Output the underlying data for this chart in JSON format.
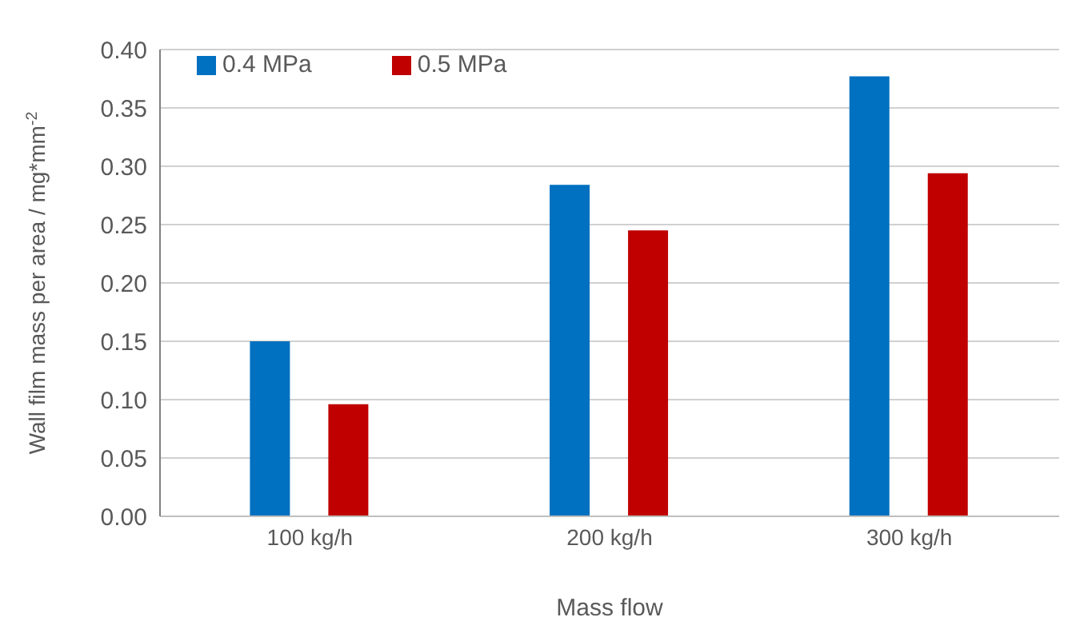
{
  "chart_data": {
    "type": "bar",
    "xlabel": "Mass flow",
    "ylabel": "Wall film mass per area  / mg*mm$^{-2}$",
    "categories": [
      "100 kg/h",
      "200 kg/h",
      "300 kg/h"
    ],
    "series": [
      {
        "name": "0.4 MPa",
        "color": "#0070c0",
        "values": [
          0.15,
          0.284,
          0.377
        ]
      },
      {
        "name": "0.5 MPa",
        "color": "#c00000",
        "values": [
          0.096,
          0.245,
          0.294
        ]
      }
    ],
    "ylim": [
      0,
      0.4
    ],
    "yticks": [
      {
        "value": 0,
        "label": "0.00"
      },
      {
        "value": 0.05,
        "label": "0.05"
      },
      {
        "value": 0.1,
        "label": "0.10"
      },
      {
        "value": 0.15,
        "label": "0.15"
      },
      {
        "value": 0.2,
        "label": "0.20"
      },
      {
        "value": 0.25,
        "label": "0.25"
      },
      {
        "value": 0.3,
        "label": "0.30"
      },
      {
        "value": 0.35,
        "label": "0.35"
      },
      {
        "value": 0.4,
        "label": "0.40"
      }
    ],
    "grid": "y",
    "legend": "top left"
  }
}
